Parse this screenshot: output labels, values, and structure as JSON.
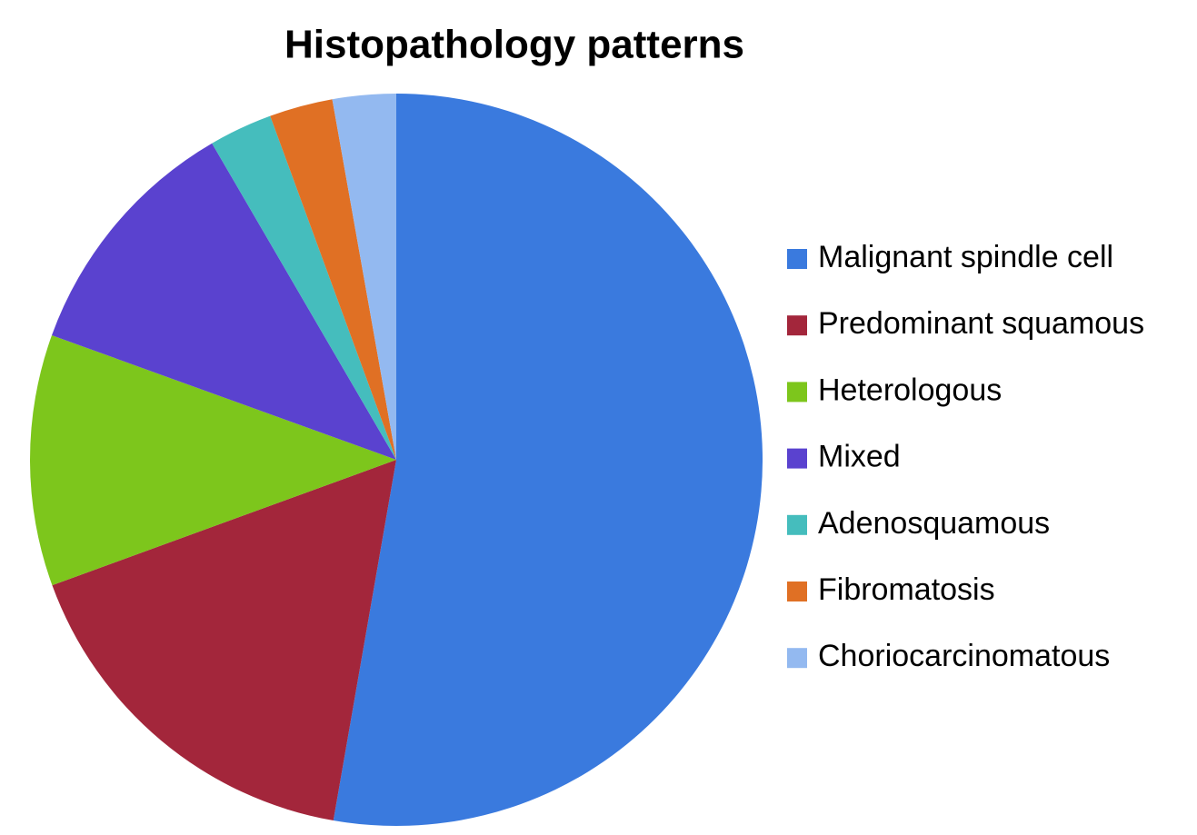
{
  "chart_data": {
    "type": "pie",
    "title": "Histopathology patterns",
    "categories": [
      "Malignant spindle cell",
      "Predominant squamous",
      "Heterologous",
      "Mixed",
      "Adenosquamous",
      "Fibromatosis",
      "Choriocarcinomatous"
    ],
    "values": [
      52.8,
      16.7,
      11.1,
      11.1,
      2.8,
      2.8,
      2.8
    ],
    "colors": [
      "#3a7ade",
      "#a3263b",
      "#7dc61c",
      "#5a42cf",
      "#45bdbd",
      "#e07024",
      "#93b9f0"
    ],
    "legend": "right"
  }
}
